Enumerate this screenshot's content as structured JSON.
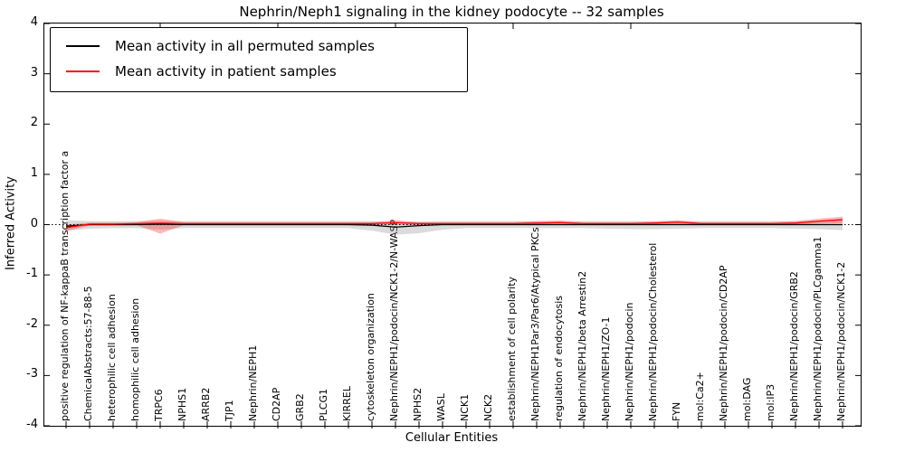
{
  "title": "Nephrin/Neph1 signaling in the kidney podocyte -- 32 samples",
  "legend": [
    {
      "label": "Mean activity in all permuted samples",
      "color": "#000000"
    },
    {
      "label": "Mean activity in patient samples",
      "color": "#ff0000"
    }
  ],
  "colors": {
    "permuted_line": "#000000",
    "patient_line": "#ff0000",
    "permuted_band": "#999999",
    "patient_band": "#ff0000",
    "zero_line": "#000000"
  },
  "chart_data": {
    "type": "line",
    "title": "Nephrin/Neph1 signaling in the kidney podocyte -- 32 samples",
    "xlabel": "Cellular Entities",
    "ylabel": "Inferred Activity",
    "ylim": [
      -4,
      4
    ],
    "yticks": [
      4,
      3,
      2,
      1,
      0,
      -1,
      -2,
      -3,
      -4
    ],
    "grid": false,
    "legend_position": "upper left",
    "zero_line_style": "dotted",
    "categories": [
      "positive regulation of NF-kappaB transcription factor a",
      "ChemicalAbstracts:57-88-5",
      "heterophilic cell adhesion",
      "homophilic cell adhesion",
      "TRPC6",
      "NPHS1",
      "ARRB2",
      "TJP1",
      "Nephrin/NEPH1",
      "CD2AP",
      "GRB2",
      "PLCG1",
      "KIRREL",
      "cytoskeleton organization",
      "Nephrin/NEPH1/podocin/NCK1-2/N-WASP",
      "NPHS2",
      "WASL",
      "NCK1",
      "NCK2",
      "establishment of cell polarity",
      "Nephrin/NEPH1Par3/Par6/Atypical PKCs",
      "regulation of endocytosis",
      "Nephrin/NEPH1/beta Arrestin2",
      "Nephrin/NEPH1/ZO-1",
      "Nephrin/NEPH1/podocin",
      "Nephrin/NEPH1/podocin/Cholesterol",
      "FYN",
      "mol:Ca2+",
      "Nephrin/NEPH1/podocin/CD2AP",
      "mol:DAG",
      "mol:IP3",
      "Nephrin/NEPH1/podocin/GRB2",
      "Nephrin/NEPH1/podocin/PLCgamma1",
      "Nephrin/NEPH1/podocin/NCK1-2"
    ],
    "series": [
      {
        "name": "Mean activity in all permuted samples",
        "color": "#000000",
        "values": [
          -0.03,
          0,
          0,
          0,
          0.01,
          0,
          0,
          0,
          0,
          0,
          0,
          0,
          0,
          -0.01,
          -0.05,
          -0.02,
          0,
          0,
          0,
          0,
          0,
          0,
          0,
          0,
          0,
          0,
          0,
          0,
          0,
          0,
          0,
          0,
          0,
          0
        ]
      },
      {
        "name": "Mean activity in patient samples",
        "color": "#ff0000",
        "values": [
          -0.06,
          0.01,
          0.01,
          0.02,
          0.03,
          0.02,
          0.02,
          0.02,
          0.02,
          0.02,
          0.02,
          0.02,
          0.02,
          0.02,
          0.04,
          0.02,
          0.02,
          0.02,
          0.02,
          0.02,
          0.03,
          0.04,
          0.02,
          0.02,
          0.02,
          0.03,
          0.05,
          0.02,
          0.02,
          0.02,
          0.02,
          0.03,
          0.07,
          0.1
        ]
      }
    ],
    "bands": [
      {
        "name": "permuted-range",
        "color": "#999999",
        "opacity": 0.35,
        "upper": [
          0.09,
          0.07,
          0.07,
          0.07,
          0.08,
          0.07,
          0.07,
          0.07,
          0.07,
          0.07,
          0.07,
          0.07,
          0.07,
          0.07,
          0.05,
          0.06,
          0.07,
          0.07,
          0.07,
          0.07,
          0.07,
          0.07,
          0.07,
          0.07,
          0.07,
          0.07,
          0.07,
          0.07,
          0.07,
          0.07,
          0.07,
          0.07,
          0.08,
          0.09
        ],
        "lower": [
          -0.12,
          -0.08,
          -0.07,
          -0.07,
          -0.1,
          -0.07,
          -0.07,
          -0.07,
          -0.07,
          -0.07,
          -0.07,
          -0.07,
          -0.07,
          -0.12,
          -0.2,
          -0.17,
          -0.1,
          -0.07,
          -0.07,
          -0.07,
          -0.07,
          -0.07,
          -0.07,
          -0.08,
          -0.09,
          -0.09,
          -0.08,
          -0.07,
          -0.07,
          -0.07,
          -0.07,
          -0.08,
          -0.09,
          -0.11
        ]
      },
      {
        "name": "patient-range",
        "color": "#ff0000",
        "opacity": 0.28,
        "upper": [
          0.0,
          0.04,
          0.04,
          0.05,
          0.12,
          0.05,
          0.05,
          0.05,
          0.05,
          0.05,
          0.05,
          0.05,
          0.05,
          0.05,
          0.09,
          0.05,
          0.05,
          0.05,
          0.05,
          0.05,
          0.07,
          0.08,
          0.05,
          0.05,
          0.05,
          0.06,
          0.09,
          0.05,
          0.05,
          0.05,
          0.05,
          0.07,
          0.12,
          0.16
        ],
        "lower": [
          -0.13,
          -0.02,
          -0.02,
          -0.01,
          -0.18,
          -0.01,
          -0.01,
          -0.01,
          -0.01,
          -0.01,
          -0.01,
          -0.01,
          -0.01,
          -0.01,
          0.0,
          -0.01,
          -0.01,
          -0.01,
          -0.01,
          -0.01,
          -0.01,
          0.0,
          -0.01,
          -0.01,
          -0.01,
          -0.01,
          0.0,
          -0.01,
          -0.01,
          -0.01,
          -0.01,
          -0.01,
          0.02,
          0.03
        ]
      }
    ]
  }
}
